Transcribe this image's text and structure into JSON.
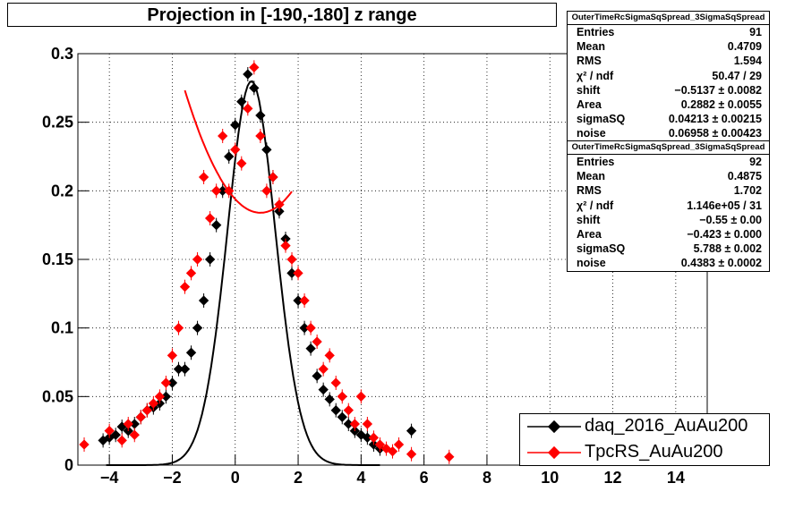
{
  "title": "Projection in [-190,-180] z range",
  "stats": [
    {
      "name": "OuterTimeRcSigmaSqSpread_3SigmaSqSpread",
      "rows": [
        {
          "label": "Entries",
          "value": "91"
        },
        {
          "label": "Mean",
          "value": "0.4709"
        },
        {
          "label": "RMS",
          "value": "1.594"
        },
        {
          "label": "χ² / ndf",
          "value": "50.47 / 29"
        },
        {
          "label": "shift",
          "value": "−0.5137 ± 0.0082"
        },
        {
          "label": "Area",
          "value": "0.2882 ± 0.0055"
        },
        {
          "label": "sigmaSQ",
          "value": "0.04213 ± 0.00215"
        },
        {
          "label": "noise",
          "value": "0.06958 ± 0.00423"
        }
      ]
    },
    {
      "name": "OuterTimeRcSigmaSqSpread_3SigmaSqSpread",
      "rows": [
        {
          "label": "Entries",
          "value": "92"
        },
        {
          "label": "Mean",
          "value": "0.4875"
        },
        {
          "label": "RMS",
          "value": "1.702"
        },
        {
          "label": "χ² / ndf",
          "value": "1.146e+05 / 31"
        },
        {
          "label": "shift",
          "value": "−0.55 ± 0.00"
        },
        {
          "label": "Area",
          "value": "−0.423 ± 0.000"
        },
        {
          "label": "sigmaSQ",
          "value": "5.788 ± 0.002"
        },
        {
          "label": "noise",
          "value": "0.4383 ± 0.0002"
        }
      ]
    }
  ],
  "legend": [
    {
      "label": "daq_2016_AuAu200",
      "color": "#000000"
    },
    {
      "label": "TpcRS_AuAu200",
      "color": "#ff0000"
    }
  ],
  "chart_data": {
    "type": "scatter",
    "xlim": [
      -5,
      15
    ],
    "ylim": [
      0,
      0.3
    ],
    "x_ticks": [
      "−4",
      "−2",
      "0",
      "2",
      "4",
      "6",
      "8",
      "10",
      "12",
      "14"
    ],
    "y_ticks": [
      "0",
      "0.05",
      "0.1",
      "0.15",
      "0.2",
      "0.25",
      "0.3"
    ],
    "grid": true,
    "colors": {
      "daq": "#000000",
      "tpc": "#ff0000"
    },
    "series": [
      {
        "name": "daq_2016_AuAu200",
        "x": [
          -4.2,
          -4.0,
          -3.8,
          -3.6,
          -3.4,
          -3.2,
          -3.0,
          -2.8,
          -2.6,
          -2.4,
          -2.2,
          -2.0,
          -1.8,
          -1.6,
          -1.4,
          -1.2,
          -1.0,
          -0.8,
          -0.6,
          -0.4,
          -0.2,
          0.0,
          0.2,
          0.4,
          0.6,
          0.8,
          1.0,
          1.2,
          1.4,
          1.6,
          1.8,
          2.0,
          2.2,
          2.4,
          2.6,
          2.8,
          3.0,
          3.2,
          3.4,
          3.6,
          3.8,
          4.0,
          4.2,
          4.4,
          4.6,
          5.6
        ],
        "y": [
          0.018,
          0.02,
          0.022,
          0.028,
          0.025,
          0.03,
          0.035,
          0.04,
          0.042,
          0.045,
          0.05,
          0.06,
          0.07,
          0.07,
          0.082,
          0.1,
          0.12,
          0.15,
          0.175,
          0.2,
          0.225,
          0.248,
          0.265,
          0.285,
          0.275,
          0.255,
          0.23,
          0.21,
          0.185,
          0.165,
          0.14,
          0.12,
          0.1,
          0.085,
          0.065,
          0.055,
          0.048,
          0.04,
          0.035,
          0.03,
          0.025,
          0.022,
          0.02,
          0.015,
          0.012,
          0.025
        ]
      },
      {
        "name": "TpcRS_AuAu200",
        "x": [
          -4.8,
          -4.0,
          -3.6,
          -3.4,
          -3.2,
          -3.0,
          -2.8,
          -2.6,
          -2.4,
          -2.2,
          -2.0,
          -1.8,
          -1.6,
          -1.4,
          -1.2,
          -1.0,
          -0.8,
          -0.6,
          -0.4,
          -0.2,
          0.0,
          0.2,
          0.4,
          0.6,
          0.8,
          1.0,
          1.2,
          1.4,
          1.6,
          1.8,
          2.0,
          2.2,
          2.4,
          2.6,
          2.8,
          3.0,
          3.2,
          3.4,
          3.6,
          3.8,
          4.0,
          4.2,
          4.4,
          4.6,
          4.8,
          5.0,
          5.2,
          5.6,
          6.8
        ],
        "y": [
          0.015,
          0.025,
          0.018,
          0.03,
          0.022,
          0.035,
          0.04,
          0.045,
          0.05,
          0.06,
          0.08,
          0.1,
          0.13,
          0.14,
          0.15,
          0.21,
          0.18,
          0.2,
          0.24,
          0.2,
          0.23,
          0.22,
          0.26,
          0.29,
          0.24,
          0.2,
          0.21,
          0.19,
          0.16,
          0.15,
          0.14,
          0.12,
          0.1,
          0.09,
          0.07,
          0.08,
          0.06,
          0.05,
          0.04,
          0.03,
          0.05,
          0.03,
          0.02,
          0.015,
          0.012,
          0.01,
          0.015,
          0.008,
          0.006
        ]
      }
    ]
  }
}
